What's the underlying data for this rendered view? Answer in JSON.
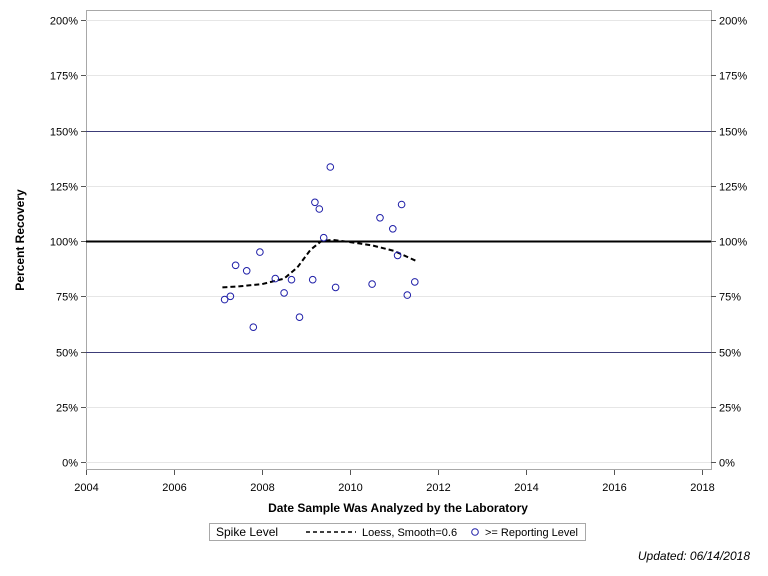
{
  "chart_data": {
    "type": "scatter",
    "xlabel": "Date Sample Was Analyzed by the Laboratory",
    "ylabel": "Percent Recovery",
    "xlim": [
      2004,
      2018.2
    ],
    "ylim": [
      0,
      200
    ],
    "x_ticks": [
      2004,
      2006,
      2008,
      2010,
      2012,
      2014,
      2016,
      2018
    ],
    "y_ticks": [
      0,
      25,
      50,
      75,
      100,
      125,
      150,
      175,
      200
    ],
    "y_tick_labels": [
      "0%",
      "25%",
      "50%",
      "75%",
      "100%",
      "125%",
      "150%",
      "175%",
      "200%"
    ],
    "reference_lines": [
      {
        "y": 50,
        "style": "thin",
        "color": "#3c3c78"
      },
      {
        "y": 100,
        "style": "thick",
        "color": "#000000"
      },
      {
        "y": 150,
        "style": "thin",
        "color": "#3c3c78"
      }
    ],
    "grid": false,
    "legend_placement": "bottom",
    "legend_title": "Spike Level",
    "series": [
      {
        "name": ">= Reporting Level",
        "marker": "circle",
        "color": "#1f1fa8",
        "points": [
          [
            2007.15,
            73.5
          ],
          [
            2007.28,
            75
          ],
          [
            2007.4,
            89
          ],
          [
            2007.65,
            86.5
          ],
          [
            2007.8,
            61
          ],
          [
            2007.95,
            95
          ],
          [
            2008.3,
            83
          ],
          [
            2008.5,
            76.5
          ],
          [
            2008.67,
            82.5
          ],
          [
            2008.85,
            65.5
          ],
          [
            2009.15,
            82.5
          ],
          [
            2009.2,
            117.5
          ],
          [
            2009.3,
            114.5
          ],
          [
            2009.4,
            101.5
          ],
          [
            2009.55,
            133.5
          ],
          [
            2009.67,
            79
          ],
          [
            2010.5,
            80.5
          ],
          [
            2010.68,
            110.5
          ],
          [
            2010.97,
            105.5
          ],
          [
            2011.08,
            93.5
          ],
          [
            2011.17,
            116.5
          ],
          [
            2011.3,
            75.5
          ],
          [
            2011.47,
            81.5
          ]
        ]
      },
      {
        "name": "Loess, Smooth=0.6",
        "line": "dashed",
        "color": "#000000",
        "points": [
          [
            2007.1,
            79
          ],
          [
            2007.5,
            79.5
          ],
          [
            2008.0,
            80.5
          ],
          [
            2008.5,
            83
          ],
          [
            2008.8,
            88
          ],
          [
            2009.1,
            96
          ],
          [
            2009.35,
            100
          ],
          [
            2009.6,
            100.5
          ],
          [
            2010.0,
            99.5
          ],
          [
            2010.5,
            98
          ],
          [
            2011.0,
            95.5
          ],
          [
            2011.5,
            91
          ]
        ]
      }
    ]
  },
  "footer": {
    "updated": "Updated: 06/14/2018"
  }
}
